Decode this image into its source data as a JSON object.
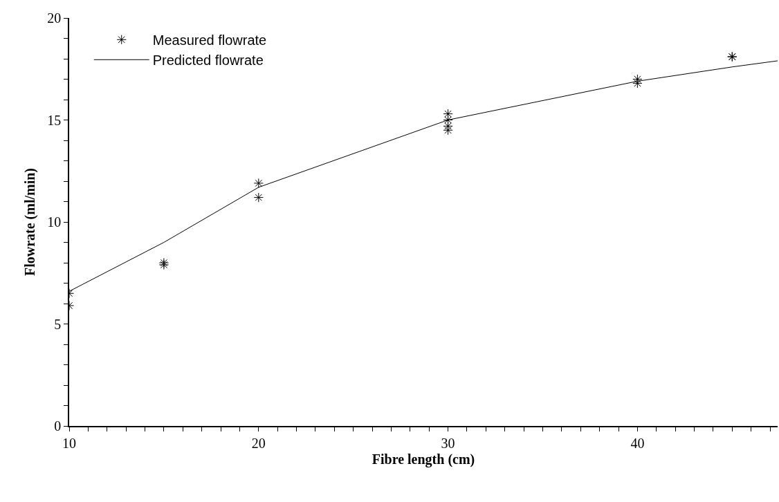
{
  "chart_data": {
    "type": "scatter",
    "xlabel": "Fibre length (cm)",
    "ylabel": "Flowrate (ml/min)",
    "xlim": [
      10,
      47.4
    ],
    "ylim": [
      0,
      20
    ],
    "xticks": [
      10,
      {
        "value": 11,
        "label": null
      },
      {
        "value": 12,
        "label": null
      },
      {
        "value": 13,
        "label": null
      },
      {
        "value": 14,
        "label": null
      },
      {
        "value": 15,
        "label": null
      },
      {
        "value": 16,
        "label": null
      },
      {
        "value": 17,
        "label": null
      },
      {
        "value": 18,
        "label": null
      },
      {
        "value": 19,
        "label": null
      },
      20,
      {
        "value": 21,
        "label": null
      },
      {
        "value": 22,
        "label": null
      },
      {
        "value": 23,
        "label": null
      },
      {
        "value": 24,
        "label": null
      },
      {
        "value": 25,
        "label": null
      },
      {
        "value": 26,
        "label": null
      },
      {
        "value": 27,
        "label": null
      },
      {
        "value": 28,
        "label": null
      },
      {
        "value": 29,
        "label": null
      },
      30,
      {
        "value": 31,
        "label": null
      },
      {
        "value": 32,
        "label": null
      },
      {
        "value": 33,
        "label": null
      },
      {
        "value": 34,
        "label": null
      },
      {
        "value": 35,
        "label": null
      },
      {
        "value": 36,
        "label": null
      },
      {
        "value": 37,
        "label": null
      },
      {
        "value": 38,
        "label": null
      },
      {
        "value": 39,
        "label": null
      },
      40,
      {
        "value": 41,
        "label": null
      },
      {
        "value": 42,
        "label": null
      },
      {
        "value": 43,
        "label": null
      },
      {
        "value": 44,
        "label": null
      },
      {
        "value": 45,
        "label": null
      },
      {
        "value": 46,
        "label": null
      },
      {
        "value": 47,
        "label": null
      }
    ],
    "yticks": [
      0,
      {
        "value": 1,
        "label": null
      },
      {
        "value": 2,
        "label": null
      },
      {
        "value": 3,
        "label": null
      },
      {
        "value": 4,
        "label": null
      },
      5,
      {
        "value": 6,
        "label": null
      },
      {
        "value": 7,
        "label": null
      },
      {
        "value": 8,
        "label": null
      },
      {
        "value": 9,
        "label": null
      },
      10,
      {
        "value": 11,
        "label": null
      },
      {
        "value": 12,
        "label": null
      },
      {
        "value": 13,
        "label": null
      },
      {
        "value": 14,
        "label": null
      },
      15,
      {
        "value": 16,
        "label": null
      },
      {
        "value": 17,
        "label": null
      },
      {
        "value": 18,
        "label": null
      },
      {
        "value": 19,
        "label": null
      },
      20
    ],
    "grid": false,
    "legend": "top left",
    "series": [
      {
        "name": "Measured flowrate",
        "marker": "cross",
        "color": "#000000",
        "x": [
          10,
          10,
          15,
          15,
          20,
          20,
          30,
          30,
          30,
          30,
          40,
          40,
          45,
          45
        ],
        "values": [
          6.5,
          5.9,
          7.9,
          8.0,
          11.9,
          11.2,
          15.3,
          15.0,
          14.7,
          14.5,
          17.0,
          16.8,
          18.1,
          18.1
        ]
      },
      {
        "name": "Predicted flowrate",
        "type": "line",
        "marker": "none",
        "line_style": "solid",
        "color": "#000000",
        "x": [
          10,
          15,
          20,
          30,
          40,
          45,
          47.4
        ],
        "values": [
          6.6,
          9.0,
          11.7,
          15.0,
          16.9,
          17.6,
          17.9
        ]
      }
    ]
  }
}
